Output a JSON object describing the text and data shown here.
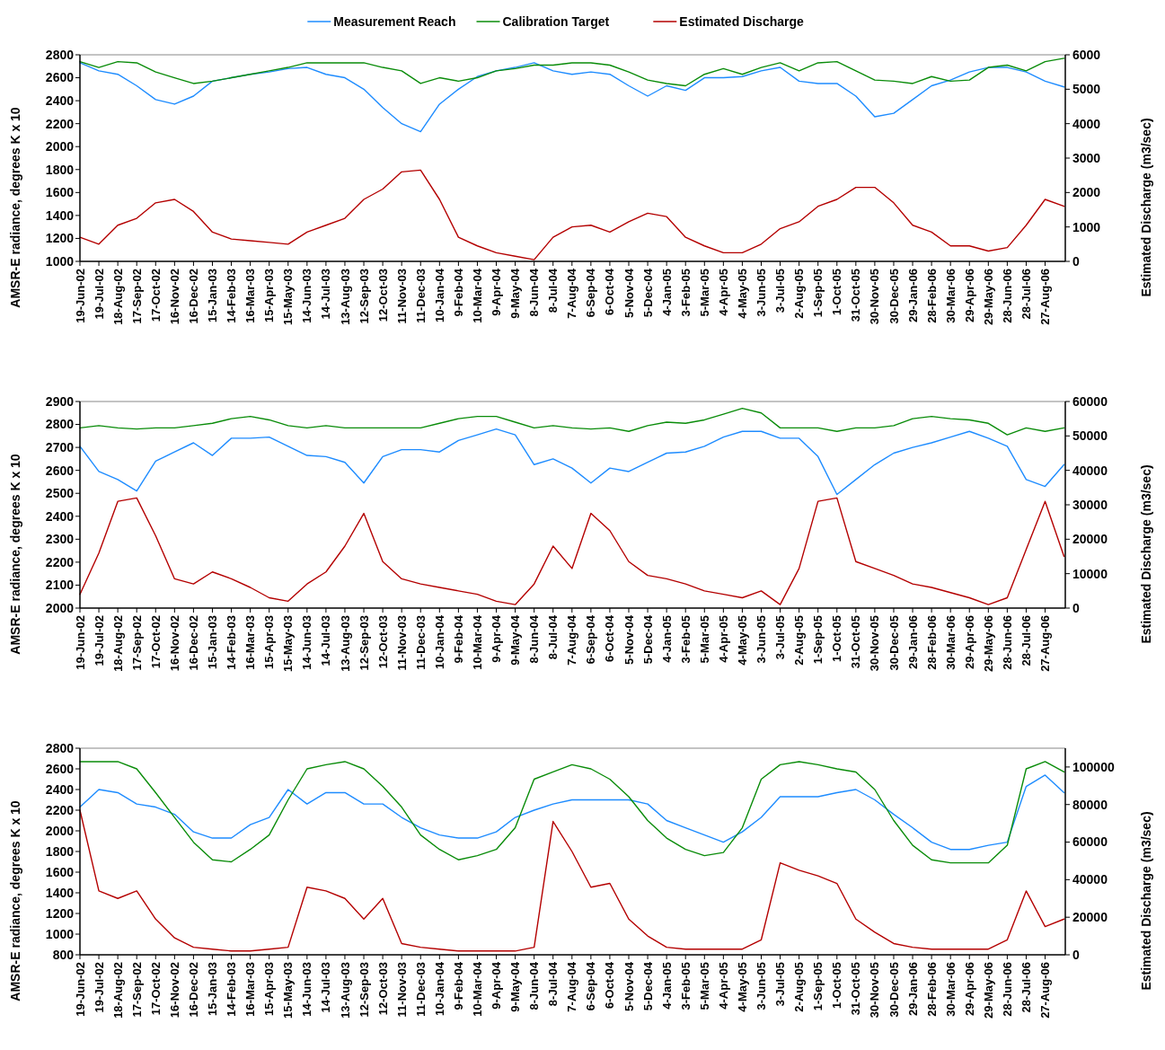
{
  "chart_data": [
    {
      "type": "line",
      "legend": "top",
      "ylabel": "AMSR-E radiance, degrees K x 10",
      "y2label": "Estimated Discharge (m3/sec)",
      "xlim": [
        "2002-06-19",
        "2006-09-28"
      ],
      "xticks": [
        {
          "value": "2002-06-19",
          "label": "19-Jun-02"
        },
        {
          "value": "2002-07-19",
          "label": "19-Jul-02"
        },
        {
          "value": "2002-08-18",
          "label": "18-Aug-02"
        },
        {
          "value": "2002-09-17",
          "label": "17-Sep-02"
        },
        {
          "value": "2002-10-17",
          "label": "17-Oct-02"
        },
        {
          "value": "2002-11-16",
          "label": "16-Nov-02"
        },
        {
          "value": "2002-12-16",
          "label": "16-Dec-02"
        },
        {
          "value": "2003-01-15",
          "label": "15-Jan-03"
        },
        {
          "value": "2003-02-14",
          "label": "14-Feb-03"
        },
        {
          "value": "2003-03-16",
          "label": "16-Mar-03"
        },
        {
          "value": "2003-04-15",
          "label": "15-Apr-03"
        },
        {
          "value": "2003-05-15",
          "label": "15-May-03"
        },
        {
          "value": "2003-06-14",
          "label": "14-Jun-03"
        },
        {
          "value": "2003-07-14",
          "label": "14-Jul-03"
        },
        {
          "value": "2003-08-13",
          "label": "13-Aug-03"
        },
        {
          "value": "2003-09-12",
          "label": "12-Sep-03"
        },
        {
          "value": "2003-10-12",
          "label": "12-Oct-03"
        },
        {
          "value": "2003-11-11",
          "label": "11-Nov-03"
        },
        {
          "value": "2003-12-11",
          "label": "11-Dec-03"
        },
        {
          "value": "2004-01-10",
          "label": "10-Jan-04"
        },
        {
          "value": "2004-02-09",
          "label": "9-Feb-04"
        },
        {
          "value": "2004-03-10",
          "label": "10-Mar-04"
        },
        {
          "value": "2004-04-09",
          "label": "9-Apr-04"
        },
        {
          "value": "2004-05-09",
          "label": "9-May-04"
        },
        {
          "value": "2004-06-08",
          "label": "8-Jun-04"
        },
        {
          "value": "2004-07-08",
          "label": "8-Jul-04"
        },
        {
          "value": "2004-08-07",
          "label": "7-Aug-04"
        },
        {
          "value": "2004-09-06",
          "label": "6-Sep-04"
        },
        {
          "value": "2004-10-06",
          "label": "6-Oct-04"
        },
        {
          "value": "2004-11-05",
          "label": "5-Nov-04"
        },
        {
          "value": "2004-12-05",
          "label": "5-Dec-04"
        },
        {
          "value": "2005-01-04",
          "label": "4-Jan-05"
        },
        {
          "value": "2005-02-03",
          "label": "3-Feb-05"
        },
        {
          "value": "2005-03-05",
          "label": "5-Mar-05"
        },
        {
          "value": "2005-04-04",
          "label": "4-Apr-05"
        },
        {
          "value": "2005-05-04",
          "label": "4-May-05"
        },
        {
          "value": "2005-06-03",
          "label": "3-Jun-05"
        },
        {
          "value": "2005-07-03",
          "label": "3-Jul-05"
        },
        {
          "value": "2005-08-02",
          "label": "2-Aug-05"
        },
        {
          "value": "2005-09-01",
          "label": "1-Sep-05"
        },
        {
          "value": "2005-10-01",
          "label": "1-Oct-05"
        },
        {
          "value": "2005-10-31",
          "label": "31-Oct-05"
        },
        {
          "value": "2005-11-30",
          "label": "30-Nov-05"
        },
        {
          "value": "2005-12-30",
          "label": "30-Dec-05"
        },
        {
          "value": "2006-01-29",
          "label": "29-Jan-06"
        },
        {
          "value": "2006-02-28",
          "label": "28-Feb-06"
        },
        {
          "value": "2006-03-30",
          "label": "30-Mar-06"
        },
        {
          "value": "2006-04-29",
          "label": "29-Apr-06"
        },
        {
          "value": "2006-05-29",
          "label": "29-May-06"
        },
        {
          "value": "2006-06-28",
          "label": "28-Jun-06"
        },
        {
          "value": "2006-07-28",
          "label": "28-Jul-06"
        },
        {
          "value": "2006-08-27",
          "label": "27-Aug-06"
        }
      ],
      "x": [
        "2002-06-19",
        "2002-07-19",
        "2002-08-18",
        "2002-09-17",
        "2002-10-17",
        "2002-11-16",
        "2002-12-16",
        "2003-01-15",
        "2003-02-14",
        "2003-03-16",
        "2003-04-15",
        "2003-05-15",
        "2003-06-14",
        "2003-07-14",
        "2003-08-13",
        "2003-09-12",
        "2003-10-12",
        "2003-11-11",
        "2003-12-11",
        "2004-01-10",
        "2004-02-09",
        "2004-03-10",
        "2004-04-09",
        "2004-05-09",
        "2004-06-08",
        "2004-07-08",
        "2004-08-07",
        "2004-09-06",
        "2004-10-06",
        "2004-11-05",
        "2004-12-05",
        "2005-01-04",
        "2005-02-03",
        "2005-03-05",
        "2005-04-04",
        "2005-05-04",
        "2005-06-03",
        "2005-07-03",
        "2005-08-02",
        "2005-09-01",
        "2005-10-01",
        "2005-10-31",
        "2005-11-30",
        "2005-12-30",
        "2006-01-29",
        "2006-02-28",
        "2006-03-30",
        "2006-04-29",
        "2006-05-29",
        "2006-06-28",
        "2006-07-28",
        "2006-08-27",
        "2006-09-26"
      ],
      "ylim": [
        1000,
        2800
      ],
      "yticks": [
        1000,
        1200,
        1400,
        1600,
        1800,
        2000,
        2200,
        2400,
        2600,
        2800
      ],
      "y2lim": [
        0,
        6000
      ],
      "y2ticks": [
        0,
        1000,
        2000,
        3000,
        4000,
        5000,
        6000
      ],
      "series": [
        {
          "name": "Measurement Reach",
          "color": "#1e8cff",
          "values": [
            2730,
            2660,
            2630,
            2530,
            2410,
            2370,
            2440,
            2570,
            2600,
            2630,
            2650,
            2680,
            2690,
            2630,
            2600,
            2500,
            2340,
            2200,
            2130,
            2370,
            2500,
            2610,
            2660,
            2690,
            2730,
            2660,
            2630,
            2650,
            2630,
            2530,
            2440,
            2530,
            2490,
            2600,
            2600,
            2610,
            2660,
            2690,
            2570,
            2550,
            2550,
            2440,
            2260,
            2290,
            2410,
            2530,
            2580,
            2650,
            2690,
            2690,
            2650,
            2570,
            2520
          ]
        },
        {
          "name": "Calibration Target",
          "color": "#0a8c0a",
          "values": [
            2740,
            2690,
            2740,
            2730,
            2650,
            2600,
            2550,
            2570,
            2600,
            2630,
            2660,
            2690,
            2730,
            2730,
            2730,
            2730,
            2690,
            2660,
            2550,
            2600,
            2570,
            2600,
            2660,
            2680,
            2710,
            2710,
            2730,
            2730,
            2710,
            2650,
            2580,
            2550,
            2530,
            2630,
            2680,
            2630,
            2690,
            2730,
            2660,
            2730,
            2740,
            2660,
            2580,
            2570,
            2550,
            2610,
            2570,
            2580,
            2690,
            2710,
            2660,
            2740,
            2770
          ]
        },
        {
          "name": "Estimated Discharge",
          "color": "#b40000",
          "axis": "y2",
          "values": [
            700,
            500,
            1050,
            1250,
            1700,
            1800,
            1450,
            850,
            650,
            600,
            550,
            500,
            850,
            1050,
            1250,
            1800,
            2100,
            2600,
            2650,
            1800,
            700,
            450,
            250,
            150,
            50,
            700,
            1000,
            1050,
            850,
            1150,
            1400,
            1300,
            700,
            450,
            250,
            250,
            500,
            950,
            1150,
            1600,
            1800,
            2150,
            2150,
            1700,
            1050,
            850,
            450,
            450,
            300,
            400,
            1050,
            1800,
            1600
          ]
        }
      ]
    },
    {
      "type": "line",
      "ylabel": "AMSR-E radiance, degrees K x 10",
      "y2label": "Estimated Discharge (m3/sec)",
      "xlim": [
        "2002-06-19",
        "2006-09-28"
      ],
      "xticks": [
        {
          "value": "2002-06-19",
          "label": "19-Jun-02"
        },
        {
          "value": "2002-07-19",
          "label": "19-Jul-02"
        },
        {
          "value": "2002-08-18",
          "label": "18-Aug-02"
        },
        {
          "value": "2002-09-17",
          "label": "17-Sep-02"
        },
        {
          "value": "2002-10-17",
          "label": "17-Oct-02"
        },
        {
          "value": "2002-11-16",
          "label": "16-Nov-02"
        },
        {
          "value": "2002-12-16",
          "label": "16-Dec-02"
        },
        {
          "value": "2003-01-15",
          "label": "15-Jan-03"
        },
        {
          "value": "2003-02-14",
          "label": "14-Feb-03"
        },
        {
          "value": "2003-03-16",
          "label": "16-Mar-03"
        },
        {
          "value": "2003-04-15",
          "label": "15-Apr-03"
        },
        {
          "value": "2003-05-15",
          "label": "15-May-03"
        },
        {
          "value": "2003-06-14",
          "label": "14-Jun-03"
        },
        {
          "value": "2003-07-14",
          "label": "14-Jul-03"
        },
        {
          "value": "2003-08-13",
          "label": "13-Aug-03"
        },
        {
          "value": "2003-09-12",
          "label": "12-Sep-03"
        },
        {
          "value": "2003-10-12",
          "label": "12-Oct-03"
        },
        {
          "value": "2003-11-11",
          "label": "11-Nov-03"
        },
        {
          "value": "2003-12-11",
          "label": "11-Dec-03"
        },
        {
          "value": "2004-01-10",
          "label": "10-Jan-04"
        },
        {
          "value": "2004-02-09",
          "label": "9-Feb-04"
        },
        {
          "value": "2004-03-10",
          "label": "10-Mar-04"
        },
        {
          "value": "2004-04-09",
          "label": "9-Apr-04"
        },
        {
          "value": "2004-05-09",
          "label": "9-May-04"
        },
        {
          "value": "2004-06-08",
          "label": "8-Jun-04"
        },
        {
          "value": "2004-07-08",
          "label": "8-Jul-04"
        },
        {
          "value": "2004-08-07",
          "label": "7-Aug-04"
        },
        {
          "value": "2004-09-06",
          "label": "6-Sep-04"
        },
        {
          "value": "2004-10-06",
          "label": "6-Oct-04"
        },
        {
          "value": "2004-11-05",
          "label": "5-Nov-04"
        },
        {
          "value": "2004-12-05",
          "label": "5-Dec-04"
        },
        {
          "value": "2005-01-04",
          "label": "4-Jan-05"
        },
        {
          "value": "2005-02-03",
          "label": "3-Feb-05"
        },
        {
          "value": "2005-03-05",
          "label": "5-Mar-05"
        },
        {
          "value": "2005-04-04",
          "label": "4-Apr-05"
        },
        {
          "value": "2005-05-04",
          "label": "4-May-05"
        },
        {
          "value": "2005-06-03",
          "label": "3-Jun-05"
        },
        {
          "value": "2005-07-03",
          "label": "3-Jul-05"
        },
        {
          "value": "2005-08-02",
          "label": "2-Aug-05"
        },
        {
          "value": "2005-09-01",
          "label": "1-Sep-05"
        },
        {
          "value": "2005-10-01",
          "label": "1-Oct-05"
        },
        {
          "value": "2005-10-31",
          "label": "31-Oct-05"
        },
        {
          "value": "2005-11-30",
          "label": "30-Nov-05"
        },
        {
          "value": "2005-12-30",
          "label": "30-Dec-05"
        },
        {
          "value": "2006-01-29",
          "label": "29-Jan-06"
        },
        {
          "value": "2006-02-28",
          "label": "28-Feb-06"
        },
        {
          "value": "2006-03-30",
          "label": "30-Mar-06"
        },
        {
          "value": "2006-04-29",
          "label": "29-Apr-06"
        },
        {
          "value": "2006-05-29",
          "label": "29-May-06"
        },
        {
          "value": "2006-06-28",
          "label": "28-Jun-06"
        },
        {
          "value": "2006-07-28",
          "label": "28-Jul-06"
        },
        {
          "value": "2006-08-27",
          "label": "27-Aug-06"
        }
      ],
      "x": [
        "2002-06-19",
        "2002-07-19",
        "2002-08-18",
        "2002-09-17",
        "2002-10-17",
        "2002-11-16",
        "2002-12-16",
        "2003-01-15",
        "2003-02-14",
        "2003-03-16",
        "2003-04-15",
        "2003-05-15",
        "2003-06-14",
        "2003-07-14",
        "2003-08-13",
        "2003-09-12",
        "2003-10-12",
        "2003-11-11",
        "2003-12-11",
        "2004-01-10",
        "2004-02-09",
        "2004-03-10",
        "2004-04-09",
        "2004-05-09",
        "2004-06-08",
        "2004-07-08",
        "2004-08-07",
        "2004-09-06",
        "2004-10-06",
        "2004-11-05",
        "2004-12-05",
        "2005-01-04",
        "2005-02-03",
        "2005-03-05",
        "2005-04-04",
        "2005-05-04",
        "2005-06-03",
        "2005-07-03",
        "2005-08-02",
        "2005-09-01",
        "2005-10-01",
        "2005-10-31",
        "2005-11-30",
        "2005-12-30",
        "2006-01-29",
        "2006-02-28",
        "2006-03-30",
        "2006-04-29",
        "2006-05-29",
        "2006-06-28",
        "2006-07-28",
        "2006-08-27",
        "2006-09-26"
      ],
      "ylim": [
        2000,
        2900
      ],
      "yticks": [
        2000,
        2100,
        2200,
        2300,
        2400,
        2500,
        2600,
        2700,
        2800,
        2900
      ],
      "y2lim": [
        0,
        60000
      ],
      "y2ticks": [
        0,
        10000,
        20000,
        30000,
        40000,
        50000,
        60000
      ],
      "series": [
        {
          "color": "#1e8cff",
          "values": [
            2705,
            2595,
            2560,
            2510,
            2640,
            2680,
            2720,
            2665,
            2740,
            2740,
            2745,
            2705,
            2665,
            2660,
            2635,
            2545,
            2660,
            2690,
            2690,
            2680,
            2730,
            2755,
            2780,
            2755,
            2625,
            2650,
            2610,
            2545,
            2610,
            2595,
            2635,
            2675,
            2680,
            2705,
            2745,
            2770,
            2770,
            2740,
            2740,
            2660,
            2495,
            2560,
            2625,
            2675,
            2700,
            2720,
            2745,
            2770,
            2740,
            2705,
            2560,
            2530,
            2625
          ]
        },
        {
          "color": "#0a8c0a",
          "values": [
            2785,
            2795,
            2785,
            2780,
            2785,
            2785,
            2795,
            2805,
            2825,
            2835,
            2820,
            2795,
            2785,
            2795,
            2785,
            2785,
            2785,
            2785,
            2785,
            2805,
            2825,
            2835,
            2835,
            2810,
            2785,
            2795,
            2785,
            2780,
            2785,
            2770,
            2795,
            2810,
            2805,
            2820,
            2845,
            2870,
            2850,
            2785,
            2785,
            2785,
            2770,
            2785,
            2785,
            2795,
            2825,
            2835,
            2825,
            2820,
            2805,
            2755,
            2785,
            2770,
            2785
          ]
        },
        {
          "color": "#b40000",
          "axis": "y2",
          "values": [
            4000,
            16000,
            31000,
            32000,
            21000,
            8500,
            7000,
            10500,
            8500,
            6000,
            3000,
            2000,
            7000,
            10500,
            18000,
            27500,
            13500,
            8500,
            7000,
            6000,
            5000,
            4000,
            2000,
            1000,
            7000,
            18000,
            11500,
            27500,
            22500,
            13500,
            9500,
            8500,
            7000,
            5000,
            4000,
            3000,
            5000,
            1000,
            11500,
            31000,
            32000,
            13500,
            11500,
            9500,
            7000,
            6000,
            4500,
            3000,
            1000,
            3000,
            17000,
            31000,
            15000
          ]
        }
      ]
    },
    {
      "type": "line",
      "ylabel": "AMSR-E radiance, degrees K x 10",
      "y2label": "Estimated Discharge (m3/sec)",
      "xlim": [
        "2002-06-19",
        "2006-09-28"
      ],
      "xticks": [
        {
          "value": "2002-06-19",
          "label": "19-Jun-02"
        },
        {
          "value": "2002-07-19",
          "label": "19-Jul-02"
        },
        {
          "value": "2002-08-18",
          "label": "18-Aug-02"
        },
        {
          "value": "2002-09-17",
          "label": "17-Sep-02"
        },
        {
          "value": "2002-10-17",
          "label": "17-Oct-02"
        },
        {
          "value": "2002-11-16",
          "label": "16-Nov-02"
        },
        {
          "value": "2002-12-16",
          "label": "16-Dec-02"
        },
        {
          "value": "2003-01-15",
          "label": "15-Jan-03"
        },
        {
          "value": "2003-02-14",
          "label": "14-Feb-03"
        },
        {
          "value": "2003-03-16",
          "label": "16-Mar-03"
        },
        {
          "value": "2003-04-15",
          "label": "15-Apr-03"
        },
        {
          "value": "2003-05-15",
          "label": "15-May-03"
        },
        {
          "value": "2003-06-14",
          "label": "14-Jun-03"
        },
        {
          "value": "2003-07-14",
          "label": "14-Jul-03"
        },
        {
          "value": "2003-08-13",
          "label": "13-Aug-03"
        },
        {
          "value": "2003-09-12",
          "label": "12-Sep-03"
        },
        {
          "value": "2003-10-12",
          "label": "12-Oct-03"
        },
        {
          "value": "2003-11-11",
          "label": "11-Nov-03"
        },
        {
          "value": "2003-12-11",
          "label": "11-Dec-03"
        },
        {
          "value": "2004-01-10",
          "label": "10-Jan-04"
        },
        {
          "value": "2004-02-09",
          "label": "9-Feb-04"
        },
        {
          "value": "2004-03-10",
          "label": "10-Mar-04"
        },
        {
          "value": "2004-04-09",
          "label": "9-Apr-04"
        },
        {
          "value": "2004-05-09",
          "label": "9-May-04"
        },
        {
          "value": "2004-06-08",
          "label": "8-Jun-04"
        },
        {
          "value": "2004-07-08",
          "label": "8-Jul-04"
        },
        {
          "value": "2004-08-07",
          "label": "7-Aug-04"
        },
        {
          "value": "2004-09-06",
          "label": "6-Sep-04"
        },
        {
          "value": "2004-10-06",
          "label": "6-Oct-04"
        },
        {
          "value": "2004-11-05",
          "label": "5-Nov-04"
        },
        {
          "value": "2004-12-05",
          "label": "5-Dec-04"
        },
        {
          "value": "2005-01-04",
          "label": "4-Jan-05"
        },
        {
          "value": "2005-02-03",
          "label": "3-Feb-05"
        },
        {
          "value": "2005-03-05",
          "label": "5-Mar-05"
        },
        {
          "value": "2005-04-04",
          "label": "4-Apr-05"
        },
        {
          "value": "2005-05-04",
          "label": "4-May-05"
        },
        {
          "value": "2005-06-03",
          "label": "3-Jun-05"
        },
        {
          "value": "2005-07-03",
          "label": "3-Jul-05"
        },
        {
          "value": "2005-08-02",
          "label": "2-Aug-05"
        },
        {
          "value": "2005-09-01",
          "label": "1-Sep-05"
        },
        {
          "value": "2005-10-01",
          "label": "1-Oct-05"
        },
        {
          "value": "2005-10-31",
          "label": "31-Oct-05"
        },
        {
          "value": "2005-11-30",
          "label": "30-Nov-05"
        },
        {
          "value": "2005-12-30",
          "label": "30-Dec-05"
        },
        {
          "value": "2006-01-29",
          "label": "29-Jan-06"
        },
        {
          "value": "2006-02-28",
          "label": "28-Feb-06"
        },
        {
          "value": "2006-03-30",
          "label": "30-Mar-06"
        },
        {
          "value": "2006-04-29",
          "label": "29-Apr-06"
        },
        {
          "value": "2006-05-29",
          "label": "29-May-06"
        },
        {
          "value": "2006-06-28",
          "label": "28-Jun-06"
        },
        {
          "value": "2006-07-28",
          "label": "28-Jul-06"
        },
        {
          "value": "2006-08-27",
          "label": "27-Aug-06"
        }
      ],
      "x": [
        "2002-06-19",
        "2002-07-19",
        "2002-08-18",
        "2002-09-17",
        "2002-10-17",
        "2002-11-16",
        "2002-12-16",
        "2003-01-15",
        "2003-02-14",
        "2003-03-16",
        "2003-04-15",
        "2003-05-15",
        "2003-06-14",
        "2003-07-14",
        "2003-08-13",
        "2003-09-12",
        "2003-10-12",
        "2003-11-11",
        "2003-12-11",
        "2004-01-10",
        "2004-02-09",
        "2004-03-10",
        "2004-04-09",
        "2004-05-09",
        "2004-06-08",
        "2004-07-08",
        "2004-08-07",
        "2004-09-06",
        "2004-10-06",
        "2004-11-05",
        "2004-12-05",
        "2005-01-04",
        "2005-02-03",
        "2005-03-05",
        "2005-04-04",
        "2005-05-04",
        "2005-06-03",
        "2005-07-03",
        "2005-08-02",
        "2005-09-01",
        "2005-10-01",
        "2005-10-31",
        "2005-11-30",
        "2005-12-30",
        "2006-01-29",
        "2006-02-28",
        "2006-03-30",
        "2006-04-29",
        "2006-05-29",
        "2006-06-28",
        "2006-07-28",
        "2006-08-27",
        "2006-09-26"
      ],
      "ylim": [
        800,
        2800
      ],
      "yticks": [
        800,
        1000,
        1200,
        1400,
        1600,
        1800,
        2000,
        2200,
        2400,
        2600,
        2800
      ],
      "y2lim": [
        0,
        110000
      ],
      "y2ticks": [
        0,
        20000,
        40000,
        60000,
        80000,
        100000
      ],
      "series": [
        {
          "color": "#1e8cff",
          "values": [
            2230,
            2400,
            2370,
            2260,
            2230,
            2160,
            1990,
            1930,
            1930,
            2060,
            2130,
            2400,
            2260,
            2370,
            2370,
            2260,
            2260,
            2130,
            2030,
            1960,
            1930,
            1930,
            1990,
            2130,
            2200,
            2260,
            2300,
            2300,
            2300,
            2300,
            2260,
            2100,
            2030,
            1960,
            1890,
            1990,
            2130,
            2330,
            2330,
            2330,
            2370,
            2400,
            2300,
            2160,
            2030,
            1890,
            1820,
            1820,
            1860,
            1890,
            2430,
            2540,
            2370
          ]
        },
        {
          "color": "#0a8c0a",
          "values": [
            2670,
            2670,
            2670,
            2600,
            2370,
            2130,
            1890,
            1720,
            1700,
            1820,
            1960,
            2300,
            2600,
            2640,
            2670,
            2600,
            2430,
            2230,
            1960,
            1820,
            1720,
            1760,
            1820,
            2030,
            2500,
            2570,
            2640,
            2600,
            2500,
            2330,
            2100,
            1930,
            1820,
            1760,
            1790,
            2030,
            2500,
            2640,
            2670,
            2640,
            2600,
            2570,
            2400,
            2100,
            1860,
            1720,
            1690,
            1690,
            1690,
            1860,
            2600,
            2670,
            2570
          ]
        },
        {
          "color": "#b40000",
          "axis": "y2",
          "values": [
            77000,
            34000,
            30000,
            34000,
            19000,
            9000,
            4000,
            3000,
            2000,
            2000,
            3000,
            4000,
            36000,
            34000,
            30000,
            19000,
            30000,
            6000,
            4000,
            3000,
            2000,
            2000,
            2000,
            2000,
            4000,
            71000,
            55000,
            36000,
            38000,
            19000,
            10000,
            4000,
            3000,
            3000,
            3000,
            3000,
            8000,
            49000,
            45000,
            42000,
            38000,
            19000,
            12000,
            6000,
            4000,
            3000,
            3000,
            3000,
            3000,
            8000,
            34000,
            15000,
            19000
          ]
        }
      ]
    }
  ]
}
